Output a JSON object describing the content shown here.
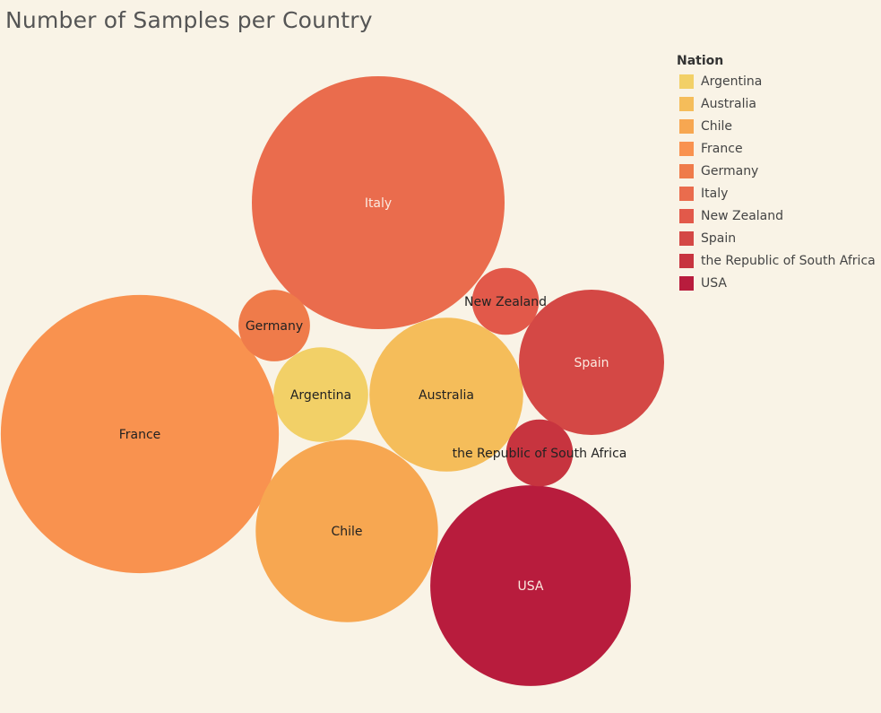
{
  "chart_data": {
    "type": "bubble",
    "title": "Number of Samples per Country",
    "legend": {
      "title": "Nation",
      "placement": "right",
      "items": [
        {
          "label": "Argentina",
          "color": "#f2d067"
        },
        {
          "label": "Australia",
          "color": "#f5bd5a"
        },
        {
          "label": "Chile",
          "color": "#f7a751"
        },
        {
          "label": "France",
          "color": "#f9924f"
        },
        {
          "label": "Germany",
          "color": "#ef7b4a"
        },
        {
          "label": "Italy",
          "color": "#ea6c4d"
        },
        {
          "label": "New Zealand",
          "color": "#e2594a"
        },
        {
          "label": "Spain",
          "color": "#d44845"
        },
        {
          "label": "the Republic of South Africa",
          "color": "#c7343f"
        },
        {
          "label": "USA",
          "color": "#b81c3d"
        }
      ]
    },
    "bubbles": [
      {
        "name": "Italy",
        "value": 100,
        "color": "#ea6c4d",
        "label_color": "#fbe9df"
      },
      {
        "name": "France",
        "value": 121,
        "color": "#f9924f",
        "label_color": "#222222"
      },
      {
        "name": "Chile",
        "value": 52,
        "color": "#f7a751",
        "label_color": "#222222"
      },
      {
        "name": "USA",
        "value": 63,
        "color": "#b81c3d",
        "label_color": "#fbe9df"
      },
      {
        "name": "Australia",
        "value": 37,
        "color": "#f5bd5a",
        "label_color": "#222222"
      },
      {
        "name": "Spain",
        "value": 33,
        "color": "#d44845",
        "label_color": "#fbe9df"
      },
      {
        "name": "Argentina",
        "value": 14,
        "color": "#f2d067",
        "label_color": "#222222"
      },
      {
        "name": "Germany",
        "value": 8,
        "color": "#ef7b4a",
        "label_color": "#222222"
      },
      {
        "name": "New Zealand",
        "value": 7,
        "color": "#e2594a",
        "label_color": "#222222"
      },
      {
        "name": "the Republic of South Africa",
        "value": 7,
        "color": "#c7343f",
        "label_color": "#222222"
      }
    ]
  }
}
